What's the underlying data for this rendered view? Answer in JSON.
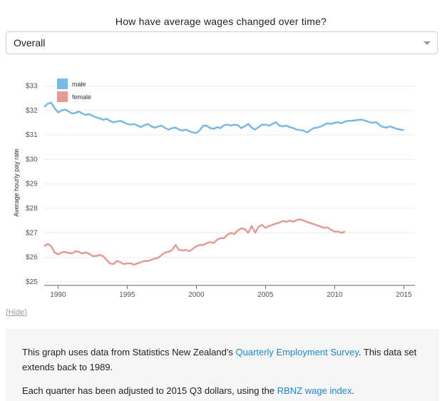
{
  "question": "How have average wages changed over time?",
  "select": {
    "value": "Overall"
  },
  "hide_label": "(Hide)",
  "info": {
    "p1_before": "This graph uses data from Statistics New Zealand's ",
    "p1_link": "Quarterly Employment Survey",
    "p1_after": ". This data set extends back to 1989.",
    "p2_before": "Each quarter has been adjusted to 2015 Q3 dollars, using the ",
    "p2_link": "RBNZ wage index",
    "p2_after": "."
  },
  "colors": {
    "male": "#7ab8e6",
    "female": "#e59b93",
    "link": "#1f86d1",
    "panel": "#f6f6f6"
  },
  "chart_data": {
    "type": "line",
    "ylabel": "Average hourly pay rate",
    "xlabel": "",
    "xlim": [
      1989.0,
      2015.8
    ],
    "ylim": [
      24.85,
      33.25
    ],
    "xticks": [
      1990,
      1995,
      2000,
      2005,
      2010,
      2015
    ],
    "yticks": [
      25,
      26,
      27,
      28,
      29,
      30,
      31,
      32,
      33
    ],
    "ytick_labels": [
      "$25",
      "$26",
      "$27",
      "$28",
      "$29",
      "$30",
      "$31",
      "$32",
      "$33"
    ],
    "grid": true,
    "legend": "top-left",
    "series": [
      {
        "name": "male",
        "color": "#7ab8e6",
        "points": [
          [
            1989.0,
            32.15
          ],
          [
            1989.25,
            32.28
          ],
          [
            1989.5,
            32.32
          ],
          [
            1989.75,
            32.1
          ],
          [
            1990.0,
            31.92
          ],
          [
            1990.25,
            32.0
          ],
          [
            1990.5,
            32.04
          ],
          [
            1990.75,
            31.97
          ],
          [
            1991.0,
            31.88
          ],
          [
            1991.25,
            31.9
          ],
          [
            1991.5,
            31.96
          ],
          [
            1991.75,
            31.88
          ],
          [
            1992.0,
            31.82
          ],
          [
            1992.25,
            31.85
          ],
          [
            1992.5,
            31.78
          ],
          [
            1992.75,
            31.72
          ],
          [
            1993.0,
            31.68
          ],
          [
            1993.25,
            31.62
          ],
          [
            1993.5,
            31.66
          ],
          [
            1993.75,
            31.58
          ],
          [
            1994.0,
            31.52
          ],
          [
            1994.25,
            31.55
          ],
          [
            1994.5,
            31.58
          ],
          [
            1994.75,
            31.52
          ],
          [
            1995.0,
            31.45
          ],
          [
            1995.25,
            31.42
          ],
          [
            1995.5,
            31.45
          ],
          [
            1995.75,
            31.38
          ],
          [
            1996.0,
            31.32
          ],
          [
            1996.25,
            31.4
          ],
          [
            1996.5,
            31.45
          ],
          [
            1996.75,
            31.35
          ],
          [
            1997.0,
            31.3
          ],
          [
            1997.25,
            31.35
          ],
          [
            1997.5,
            31.38
          ],
          [
            1997.75,
            31.28
          ],
          [
            1998.0,
            31.22
          ],
          [
            1998.25,
            31.28
          ],
          [
            1998.5,
            31.3
          ],
          [
            1998.75,
            31.22
          ],
          [
            1999.0,
            31.18
          ],
          [
            1999.25,
            31.22
          ],
          [
            1999.5,
            31.15
          ],
          [
            1999.75,
            31.1
          ],
          [
            2000.0,
            31.08
          ],
          [
            2000.25,
            31.2
          ],
          [
            2000.5,
            31.38
          ],
          [
            2000.75,
            31.38
          ],
          [
            2001.0,
            31.28
          ],
          [
            2001.25,
            31.25
          ],
          [
            2001.5,
            31.32
          ],
          [
            2001.75,
            31.28
          ],
          [
            2002.0,
            31.4
          ],
          [
            2002.25,
            31.42
          ],
          [
            2002.5,
            31.38
          ],
          [
            2002.75,
            31.42
          ],
          [
            2003.0,
            31.4
          ],
          [
            2003.25,
            31.28
          ],
          [
            2003.5,
            31.35
          ],
          [
            2003.75,
            31.45
          ],
          [
            2004.0,
            31.3
          ],
          [
            2004.25,
            31.22
          ],
          [
            2004.5,
            31.32
          ],
          [
            2004.75,
            31.42
          ],
          [
            2005.0,
            31.42
          ],
          [
            2005.25,
            31.38
          ],
          [
            2005.5,
            31.45
          ],
          [
            2005.75,
            31.52
          ],
          [
            2006.0,
            31.38
          ],
          [
            2006.25,
            31.35
          ],
          [
            2006.5,
            31.38
          ],
          [
            2006.75,
            31.32
          ],
          [
            2007.0,
            31.28
          ],
          [
            2007.25,
            31.22
          ],
          [
            2007.5,
            31.2
          ],
          [
            2007.75,
            31.18
          ],
          [
            2008.0,
            31.1
          ],
          [
            2008.25,
            31.2
          ],
          [
            2008.5,
            31.28
          ],
          [
            2008.75,
            31.3
          ],
          [
            2009.0,
            31.35
          ],
          [
            2009.25,
            31.42
          ],
          [
            2009.5,
            31.48
          ],
          [
            2009.75,
            31.45
          ],
          [
            2010.0,
            31.5
          ],
          [
            2010.25,
            31.52
          ],
          [
            2010.5,
            31.48
          ],
          [
            2010.75,
            31.55
          ],
          [
            2011.0,
            31.58
          ],
          [
            2011.25,
            31.58
          ],
          [
            2011.5,
            31.6
          ],
          [
            2011.75,
            31.62
          ],
          [
            2012.0,
            31.62
          ],
          [
            2012.25,
            31.58
          ],
          [
            2012.5,
            31.52
          ],
          [
            2012.75,
            31.5
          ],
          [
            2013.0,
            31.52
          ],
          [
            2013.25,
            31.4
          ],
          [
            2013.5,
            31.32
          ],
          [
            2013.75,
            31.3
          ],
          [
            2014.0,
            31.35
          ],
          [
            2014.25,
            31.3
          ],
          [
            2014.5,
            31.25
          ],
          [
            2014.75,
            31.22
          ],
          [
            2015.0,
            31.2
          ]
        ]
      },
      {
        "name": "female",
        "color": "#e59b93",
        "points": [
          [
            1989.0,
            26.45
          ],
          [
            1989.25,
            26.55
          ],
          [
            1989.5,
            26.45
          ],
          [
            1989.75,
            26.2
          ],
          [
            1990.0,
            26.12
          ],
          [
            1990.25,
            26.2
          ],
          [
            1990.5,
            26.22
          ],
          [
            1990.75,
            26.18
          ],
          [
            1991.0,
            26.15
          ],
          [
            1991.25,
            26.25
          ],
          [
            1991.5,
            26.22
          ],
          [
            1991.75,
            26.15
          ],
          [
            1992.0,
            26.2
          ],
          [
            1992.25,
            26.15
          ],
          [
            1992.5,
            26.05
          ],
          [
            1992.75,
            26.05
          ],
          [
            1993.0,
            26.1
          ],
          [
            1993.25,
            26.05
          ],
          [
            1993.5,
            25.9
          ],
          [
            1993.75,
            25.75
          ],
          [
            1994.0,
            25.72
          ],
          [
            1994.25,
            25.85
          ],
          [
            1994.5,
            25.8
          ],
          [
            1994.75,
            25.72
          ],
          [
            1995.0,
            25.75
          ],
          [
            1995.25,
            25.75
          ],
          [
            1995.5,
            25.7
          ],
          [
            1995.75,
            25.75
          ],
          [
            1996.0,
            25.8
          ],
          [
            1996.25,
            25.85
          ],
          [
            1996.5,
            25.85
          ],
          [
            1996.75,
            25.9
          ],
          [
            1997.0,
            25.95
          ],
          [
            1997.25,
            25.98
          ],
          [
            1997.5,
            26.1
          ],
          [
            1997.75,
            26.2
          ],
          [
            1998.0,
            26.22
          ],
          [
            1998.25,
            26.3
          ],
          [
            1998.5,
            26.5
          ],
          [
            1998.75,
            26.3
          ],
          [
            1999.0,
            26.28
          ],
          [
            1999.25,
            26.3
          ],
          [
            1999.5,
            26.25
          ],
          [
            1999.75,
            26.35
          ],
          [
            2000.0,
            26.45
          ],
          [
            2000.25,
            26.5
          ],
          [
            2000.5,
            26.5
          ],
          [
            2000.75,
            26.58
          ],
          [
            2001.0,
            26.62
          ],
          [
            2001.25,
            26.58
          ],
          [
            2001.5,
            26.72
          ],
          [
            2001.75,
            26.78
          ],
          [
            2002.0,
            26.78
          ],
          [
            2002.25,
            26.92
          ],
          [
            2002.5,
            27.0
          ],
          [
            2002.75,
            26.95
          ],
          [
            2003.0,
            27.1
          ],
          [
            2003.25,
            27.18
          ],
          [
            2003.5,
            27.15
          ],
          [
            2003.75,
            27.0
          ],
          [
            2004.0,
            27.28
          ],
          [
            2004.25,
            27.0
          ],
          [
            2004.5,
            27.25
          ],
          [
            2004.75,
            27.32
          ],
          [
            2005.0,
            27.2
          ],
          [
            2005.25,
            27.28
          ],
          [
            2005.5,
            27.32
          ],
          [
            2005.75,
            27.38
          ],
          [
            2006.0,
            27.42
          ],
          [
            2006.25,
            27.48
          ],
          [
            2006.5,
            27.45
          ],
          [
            2006.75,
            27.5
          ],
          [
            2007.0,
            27.45
          ],
          [
            2007.25,
            27.52
          ],
          [
            2007.5,
            27.55
          ],
          [
            2007.75,
            27.5
          ],
          [
            2008.0,
            27.45
          ],
          [
            2008.25,
            27.4
          ],
          [
            2008.5,
            27.35
          ],
          [
            2008.75,
            27.3
          ],
          [
            2009.0,
            27.25
          ],
          [
            2009.25,
            27.2
          ],
          [
            2009.5,
            27.22
          ],
          [
            2009.75,
            27.12
          ],
          [
            2010.0,
            27.05
          ],
          [
            2010.25,
            27.05
          ],
          [
            2010.5,
            27.0
          ],
          [
            2010.75,
            27.05
          ]
        ]
      }
    ]
  }
}
